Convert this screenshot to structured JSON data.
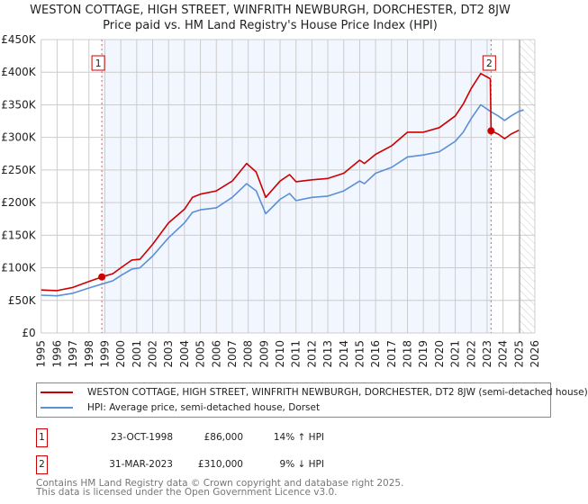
{
  "title_line1": "WESTON COTTAGE, HIGH STREET, WINFRITH NEWBURGH, DORCHESTER, DT2 8JW",
  "title_line2": "Price paid vs. HM Land Registry's House Price Index (HPI)",
  "chart_data": {
    "type": "line",
    "title": "WESTON COTTAGE, HIGH STREET, WINFRITH NEWBURGH, DORCHESTER, DT2 8JW - Price paid vs. HM Land Registry's House Price Index (HPI)",
    "xlim": [
      1995,
      2026
    ],
    "ylim": [
      0,
      450000
    ],
    "x_ticks": [
      "1995",
      "1996",
      "1997",
      "1998",
      "1999",
      "2000",
      "2001",
      "2002",
      "2003",
      "2004",
      "2005",
      "2006",
      "2007",
      "2008",
      "2009",
      "2010",
      "2011",
      "2012",
      "2013",
      "2014",
      "2015",
      "2016",
      "2017",
      "2018",
      "2019",
      "2020",
      "2021",
      "2022",
      "2023",
      "2024",
      "2025",
      "2026"
    ],
    "y_ticks": [
      {
        "v": 0,
        "label": "£0"
      },
      {
        "v": 50000,
        "label": "£50K"
      },
      {
        "v": 100000,
        "label": "£100K"
      },
      {
        "v": 150000,
        "label": "£150K"
      },
      {
        "v": 200000,
        "label": "£200K"
      },
      {
        "v": 250000,
        "label": "£250K"
      },
      {
        "v": 300000,
        "label": "£300K"
      },
      {
        "v": 350000,
        "label": "£350K"
      },
      {
        "v": 400000,
        "label": "£400K"
      },
      {
        "v": 450000,
        "label": "£450K"
      }
    ],
    "grid": true,
    "series": [
      {
        "name": "WESTON COTTAGE, HIGH STREET, WINFRITH NEWBURGH, DORCHESTER, DT2 8JW (semi-detached house)",
        "color": "#cc0000",
        "points": [
          [
            1995,
            66000
          ],
          [
            1996,
            65000
          ],
          [
            1997,
            70000
          ],
          [
            1998,
            79000
          ],
          [
            1998.81,
            86000
          ],
          [
            1999.5,
            91000
          ],
          [
            2000,
            100000
          ],
          [
            2000.7,
            112000
          ],
          [
            2001.2,
            113000
          ],
          [
            2002,
            136000
          ],
          [
            2003,
            169000
          ],
          [
            2004,
            190000
          ],
          [
            2004.5,
            208000
          ],
          [
            2005,
            213000
          ],
          [
            2006,
            218000
          ],
          [
            2007,
            233000
          ],
          [
            2007.9,
            260000
          ],
          [
            2008.5,
            247000
          ],
          [
            2009.1,
            208000
          ],
          [
            2010,
            233000
          ],
          [
            2010.6,
            243000
          ],
          [
            2011,
            232000
          ],
          [
            2012,
            235000
          ],
          [
            2013,
            237000
          ],
          [
            2014,
            245000
          ],
          [
            2015,
            265000
          ],
          [
            2015.3,
            260000
          ],
          [
            2016,
            274000
          ],
          [
            2017,
            287000
          ],
          [
            2018,
            308000
          ],
          [
            2019,
            308000
          ],
          [
            2020,
            315000
          ],
          [
            2021,
            333000
          ],
          [
            2021.5,
            351000
          ],
          [
            2022,
            375000
          ],
          [
            2022.6,
            398000
          ],
          [
            2023.2,
            390000
          ],
          [
            2023.25,
            310000
          ],
          [
            2023.7,
            305000
          ],
          [
            2024.1,
            298000
          ],
          [
            2024.5,
            305000
          ],
          [
            2025,
            311000
          ]
        ]
      },
      {
        "name": "HPI: Average price, semi-detached house, Dorset",
        "color": "#5b8fd6",
        "points": [
          [
            1995,
            58000
          ],
          [
            1996,
            57000
          ],
          [
            1997,
            61000
          ],
          [
            1998,
            69000
          ],
          [
            1998.81,
            75000
          ],
          [
            1999.5,
            80000
          ],
          [
            2000,
            88000
          ],
          [
            2000.7,
            98000
          ],
          [
            2001.2,
            100000
          ],
          [
            2002,
            118000
          ],
          [
            2003,
            146000
          ],
          [
            2004,
            169000
          ],
          [
            2004.5,
            185000
          ],
          [
            2005,
            189000
          ],
          [
            2006,
            192000
          ],
          [
            2007,
            208000
          ],
          [
            2007.9,
            229000
          ],
          [
            2008.5,
            218000
          ],
          [
            2009.1,
            183000
          ],
          [
            2010,
            205000
          ],
          [
            2010.6,
            214000
          ],
          [
            2011,
            203000
          ],
          [
            2012,
            208000
          ],
          [
            2013,
            210000
          ],
          [
            2014,
            218000
          ],
          [
            2015,
            233000
          ],
          [
            2015.3,
            229000
          ],
          [
            2016,
            245000
          ],
          [
            2017,
            254000
          ],
          [
            2018,
            270000
          ],
          [
            2019,
            273000
          ],
          [
            2020,
            278000
          ],
          [
            2021,
            294000
          ],
          [
            2021.5,
            308000
          ],
          [
            2022,
            329000
          ],
          [
            2022.6,
            350000
          ],
          [
            2023.2,
            340000
          ],
          [
            2023.7,
            333000
          ],
          [
            2024.1,
            326000
          ],
          [
            2024.5,
            333000
          ],
          [
            2025,
            340000
          ],
          [
            2025.3,
            342000
          ]
        ]
      }
    ],
    "sales": [
      {
        "label": "1",
        "x": 1998.81,
        "y": 86000
      },
      {
        "label": "2",
        "x": 2023.25,
        "y": 310000
      }
    ],
    "forecast_hatch_from": 2025.05,
    "legend": "below"
  },
  "legend": {
    "property": "WESTON COTTAGE, HIGH STREET, WINFRITH NEWBURGH, DORCHESTER, DT2 8JW (semi-detached house)",
    "hpi": "HPI: Average price, semi-detached house, Dorset"
  },
  "transactions": [
    {
      "num": "1",
      "date": "23-OCT-1998",
      "price": "£86,000",
      "pct": "14% ↑ HPI"
    },
    {
      "num": "2",
      "date": "31-MAR-2023",
      "price": "£310,000",
      "pct": "9% ↓ HPI"
    }
  ],
  "footer1": "Contains HM Land Registry data © Crown copyright and database right 2025.",
  "footer2": "This data is licensed under the Open Government Licence v3.0."
}
